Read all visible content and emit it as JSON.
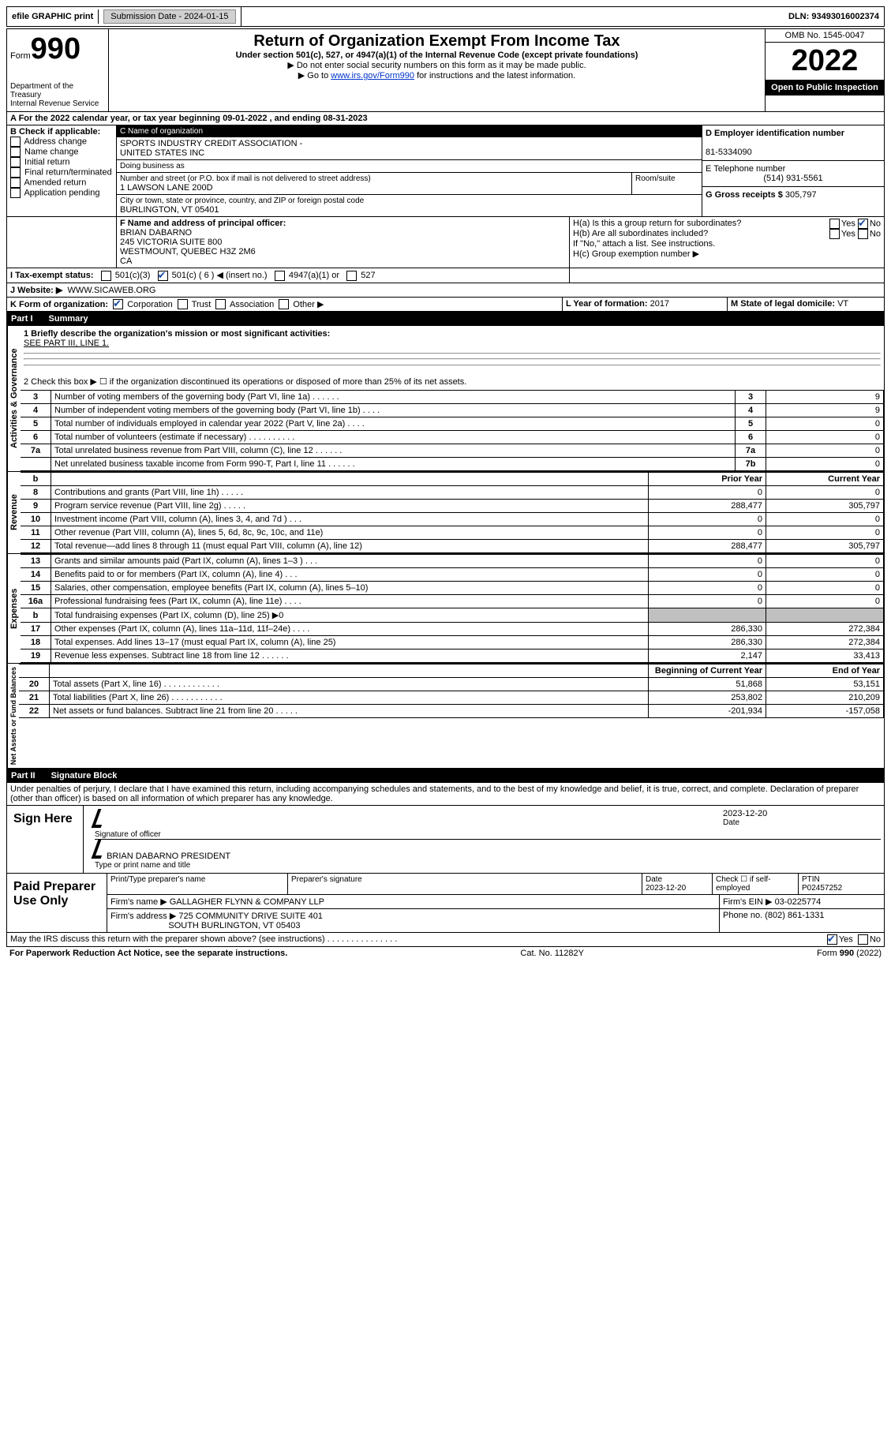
{
  "topBar": {
    "efile": "efile GRAPHIC print",
    "submissionLabel": "Submission Date - 2024-01-15",
    "dln": "DLN: 93493016002374"
  },
  "header": {
    "formWord": "Form",
    "formNumber": "990",
    "title": "Return of Organization Exempt From Income Tax",
    "subtitle": "Under section 501(c), 527, or 4947(a)(1) of the Internal Revenue Code (except private foundations)",
    "note1": "▶ Do not enter social security numbers on this form as it may be made public.",
    "note2prefix": "▶ Go to ",
    "note2link": "www.irs.gov/Form990",
    "note2suffix": " for instructions and the latest information.",
    "dept": "Department of the Treasury",
    "irs": "Internal Revenue Service",
    "omb": "OMB No. 1545-0047",
    "year": "2022",
    "openPublic": "Open to Public Inspection"
  },
  "lineA": {
    "text": "A For the 2022 calendar year, or tax year beginning 09-01-2022    , and ending 08-31-2023"
  },
  "boxB": {
    "label": "B Check if applicable:",
    "items": [
      "Address change",
      "Name change",
      "Initial return",
      "Final return/terminated",
      "Amended return",
      "Application pending"
    ]
  },
  "boxC": {
    "label": "C Name of organization",
    "name1": "SPORTS INDUSTRY CREDIT ASSOCIATION -",
    "name2": "UNITED STATES INC",
    "dba": "Doing business as",
    "streetLabel": "Number and street (or P.O. box if mail is not delivered to street address)",
    "street": "1 LAWSON LANE 200D",
    "roomLabel": "Room/suite",
    "cityLabel": "City or town, state or province, country, and ZIP or foreign postal code",
    "city": "BURLINGTON, VT   05401"
  },
  "boxD": {
    "label": "D Employer identification number",
    "value": "81-5334090"
  },
  "boxE": {
    "label": "E Telephone number",
    "value": "(514) 931-5561"
  },
  "boxG": {
    "label": "G Gross receipts $",
    "value": "305,797"
  },
  "boxF": {
    "label": "F Name and address of principal officer:",
    "name": "BRIAN DABARNO",
    "addr1": "245 VICTORIA SUITE 800",
    "addr2": "WESTMOUNT, QUEBEC   H3Z 2M6",
    "addr3": "CA"
  },
  "boxH": {
    "a": "H(a)  Is this a group return for subordinates?",
    "b": "H(b)  Are all subordinates included?",
    "bNote": "If \"No,\" attach a list. See instructions.",
    "c": "H(c)  Group exemption number ▶",
    "yes": "Yes",
    "no": "No"
  },
  "boxI": {
    "label": "I   Tax-exempt status:",
    "opt1": "501(c)(3)",
    "opt2": "501(c) ( 6 ) ◀ (insert no.)",
    "opt3": "4947(a)(1) or",
    "opt4": "527"
  },
  "boxJ": {
    "label": "J   Website: ▶",
    "value": "WWW.SICAWEB.ORG"
  },
  "boxK": {
    "label": "K Form of organization:",
    "corp": "Corporation",
    "trust": "Trust",
    "assoc": "Association",
    "other": "Other ▶"
  },
  "boxL": {
    "label": "L Year of formation:",
    "value": "2017"
  },
  "boxM": {
    "label": "M State of legal domicile:",
    "value": "VT"
  },
  "part1": {
    "label": "Part I",
    "title": "Summary"
  },
  "summary": {
    "line1label": "1   Briefly describe the organization's mission or most significant activities:",
    "line1value": "SEE PART III, LINE 1.",
    "line2": "2    Check this box ▶ ☐  if the organization discontinued its operations or disposed of more than 25% of its net assets.",
    "govLabel": "Activities & Governance",
    "revLabel": "Revenue",
    "expLabel": "Expenses",
    "netLabel": "Net Assets or Fund Balances",
    "priorYear": "Prior Year",
    "currentYear": "Current Year",
    "begYear": "Beginning of Current Year",
    "endYear": "End of Year",
    "rows_gov": [
      {
        "num": "3",
        "desc": "Number of voting members of the governing body (Part VI, line 1a)   .    .    .    .    .    .",
        "box": "3",
        "val": "9"
      },
      {
        "num": "4",
        "desc": "Number of independent voting members of the governing body (Part VI, line 1b)   .    .    .    .",
        "box": "4",
        "val": "9"
      },
      {
        "num": "5",
        "desc": "Total number of individuals employed in calendar year 2022 (Part V, line 2a)   .    .    .    .",
        "box": "5",
        "val": "0"
      },
      {
        "num": "6",
        "desc": "Total number of volunteers (estimate if necessary)    .    .    .    .    .    .    .    .    .    .",
        "box": "6",
        "val": "0"
      },
      {
        "num": "7a",
        "desc": "Total unrelated business revenue from Part VIII, column (C), line 12   .    .    .    .    .    .",
        "box": "7a",
        "val": "0"
      },
      {
        "num": "",
        "desc": "Net unrelated business taxable income from Form 990-T, Part I, line 11   .    .    .    .    .    .",
        "box": "7b",
        "val": "0"
      }
    ],
    "rows_rev": [
      {
        "num": "8",
        "desc": "Contributions and grants (Part VIII, line 1h)    .    .    .    .    .",
        "prior": "0",
        "curr": "0"
      },
      {
        "num": "9",
        "desc": "Program service revenue (Part VIII, line 2g)    .    .    .    .    .",
        "prior": "288,477",
        "curr": "305,797"
      },
      {
        "num": "10",
        "desc": "Investment income (Part VIII, column (A), lines 3, 4, and 7d )    .    .    .",
        "prior": "0",
        "curr": "0"
      },
      {
        "num": "11",
        "desc": "Other revenue (Part VIII, column (A), lines 5, 6d, 8c, 9c, 10c, and 11e)",
        "prior": "0",
        "curr": "0"
      },
      {
        "num": "12",
        "desc": "Total revenue—add lines 8 through 11 (must equal Part VIII, column (A), line 12)",
        "prior": "288,477",
        "curr": "305,797"
      }
    ],
    "rows_exp": [
      {
        "num": "13",
        "desc": "Grants and similar amounts paid (Part IX, column (A), lines 1–3 )   .    .    .",
        "prior": "0",
        "curr": "0"
      },
      {
        "num": "14",
        "desc": "Benefits paid to or for members (Part IX, column (A), line 4)   .    .    .",
        "prior": "0",
        "curr": "0"
      },
      {
        "num": "15",
        "desc": "Salaries, other compensation, employee benefits (Part IX, column (A), lines 5–10)",
        "prior": "0",
        "curr": "0"
      },
      {
        "num": "16a",
        "desc": "Professional fundraising fees (Part IX, column (A), line 11e)   .    .    .    .",
        "prior": "0",
        "curr": "0"
      },
      {
        "num": "b",
        "desc": "Total fundraising expenses (Part IX, column (D), line 25) ▶0",
        "prior": "shaded",
        "curr": "shaded"
      },
      {
        "num": "17",
        "desc": "Other expenses (Part IX, column (A), lines 11a–11d, 11f–24e)   .    .    .    .",
        "prior": "286,330",
        "curr": "272,384"
      },
      {
        "num": "18",
        "desc": "Total expenses. Add lines 13–17 (must equal Part IX, column (A), line 25)",
        "prior": "286,330",
        "curr": "272,384"
      },
      {
        "num": "19",
        "desc": "Revenue less expenses. Subtract line 18 from line 12   .    .    .    .    .    .",
        "prior": "2,147",
        "curr": "33,413"
      }
    ],
    "rows_net": [
      {
        "num": "20",
        "desc": "Total assets (Part X, line 16)   .    .    .    .    .    .    .    .    .    .    .    .",
        "prior": "51,868",
        "curr": "53,151"
      },
      {
        "num": "21",
        "desc": "Total liabilities (Part X, line 26)   .    .    .    .    .    .    .    .    .    .    .",
        "prior": "253,802",
        "curr": "210,209"
      },
      {
        "num": "22",
        "desc": "Net assets or fund balances. Subtract line 21 from line 20   .    .    .    .    .",
        "prior": "-201,934",
        "curr": "-157,058"
      }
    ]
  },
  "part2": {
    "label": "Part II",
    "title": "Signature Block",
    "penalty": "Under penalties of perjury, I declare that I have examined this return, including accompanying schedules and statements, and to the best of my knowledge and belief, it is true, correct, and complete. Declaration of preparer (other than officer) is based on all information of which preparer has any knowledge."
  },
  "sign": {
    "here": "Sign Here",
    "sigLabel": "Signature of officer",
    "dateLabel": "Date",
    "date": "2023-12-20",
    "name": "BRIAN DABARNO  PRESIDENT",
    "nameLabel": "Type or print name and title"
  },
  "preparer": {
    "label": "Paid Preparer Use Only",
    "printLabel": "Print/Type preparer's name",
    "sigLabel": "Preparer's signature",
    "dateLabel": "Date",
    "date": "2023-12-20",
    "checkLabel": "Check ☐ if self-employed",
    "ptinLabel": "PTIN",
    "ptin": "P02457252",
    "firmNameLabel": "Firm's name      ▶",
    "firmName": "GALLAGHER FLYNN & COMPANY LLP",
    "firmEinLabel": "Firm's EIN ▶",
    "firmEin": "03-0225774",
    "firmAddrLabel": "Firm's address ▶",
    "firmAddr1": "725 COMMUNITY DRIVE SUITE 401",
    "firmAddr2": "SOUTH BURLINGTON, VT   05403",
    "phoneLabel": "Phone no.",
    "phone": "(802) 861-1331"
  },
  "discuss": {
    "text": "May the IRS discuss this return with the preparer shown above? (see instructions)    .    .    .    .    .    .    .    .    .    .    .    .    .    .    .",
    "yes": "Yes",
    "no": "No"
  },
  "footer": {
    "left": "For Paperwork Reduction Act Notice, see the separate instructions.",
    "center": "Cat. No. 11282Y",
    "right": "Form 990 (2022)"
  }
}
